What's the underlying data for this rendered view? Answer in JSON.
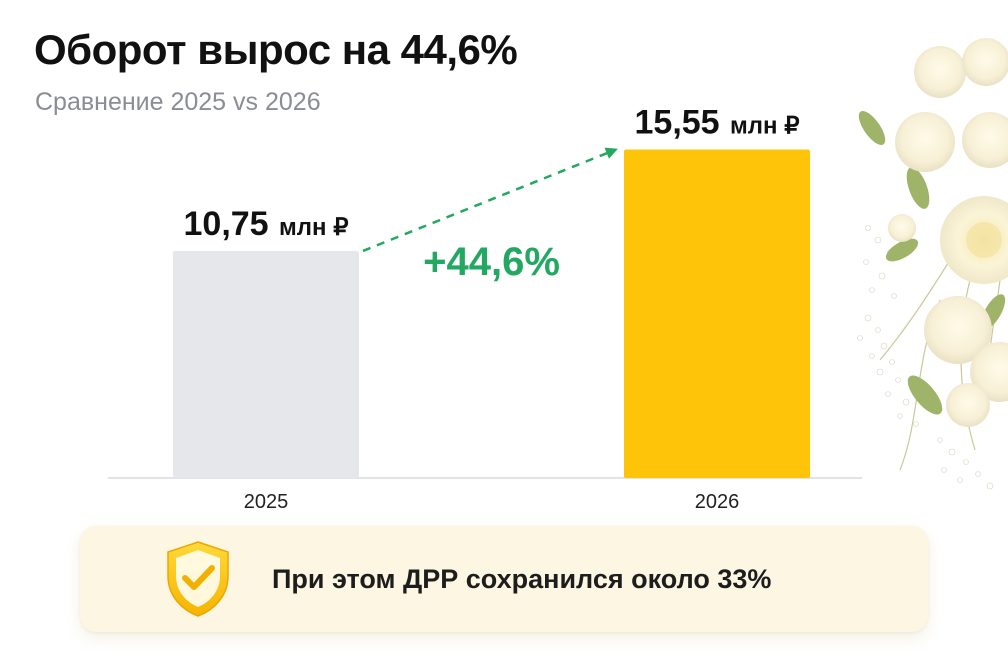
{
  "chart_data": {
    "type": "bar",
    "title": "Оборот вырос на 44,6%",
    "subtitle": "Сравнение 2025 vs 2026",
    "categories": [
      "2025",
      "2026"
    ],
    "values": [
      10.75,
      15.55
    ],
    "value_labels": [
      "10,75",
      "15,55"
    ],
    "value_unit": "млн ₽",
    "bar_colors": [
      "#e6e7ea",
      "#fdc40a"
    ],
    "growth_label": "+44,6%",
    "growth_color": "#23a862",
    "ylim": [
      0,
      16
    ],
    "grid": false,
    "legend": "none"
  },
  "callout": {
    "text": "При этом ДРР сохранился около 33%",
    "icon": "shield-check-icon"
  },
  "decoration": {
    "image": "flower-bouquet-image"
  }
}
